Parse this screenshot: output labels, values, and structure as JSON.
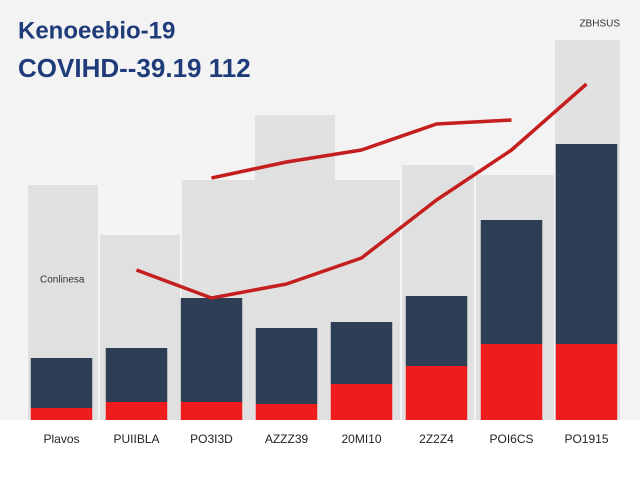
{
  "chart_data": {
    "type": "bar",
    "stacked": true,
    "title": "Kenoeebio-19",
    "subtitle": "COVIHD--39.19 112",
    "corner_label": "ZBHSUS",
    "annotation": "Conlinesa",
    "categories": [
      "Plavos",
      "PUIIBLA",
      "PO3I3D",
      "AZZZ39",
      "20MI10",
      "2Z2Z4",
      "POI6CS",
      "PO1915"
    ],
    "ylim": [
      0,
      100
    ],
    "series": [
      {
        "type": "bar",
        "color": "#ee1c1c",
        "values": [
          3,
          4.5,
          4.5,
          4,
          9,
          13.5,
          19,
          19
        ]
      },
      {
        "type": "bar",
        "color": "#2e3e55",
        "values": [
          12.5,
          13.5,
          26,
          19,
          15.5,
          17.5,
          31,
          50
        ]
      },
      {
        "type": "line",
        "color": "#c41e1e",
        "values": [
          null,
          null,
          60.5,
          64.5,
          67.5,
          74,
          75,
          null
        ]
      },
      {
        "type": "line",
        "color": "#c41e1e",
        "values": [
          null,
          37.5,
          30.5,
          34,
          40.5,
          55,
          67.5,
          84
        ]
      }
    ]
  }
}
